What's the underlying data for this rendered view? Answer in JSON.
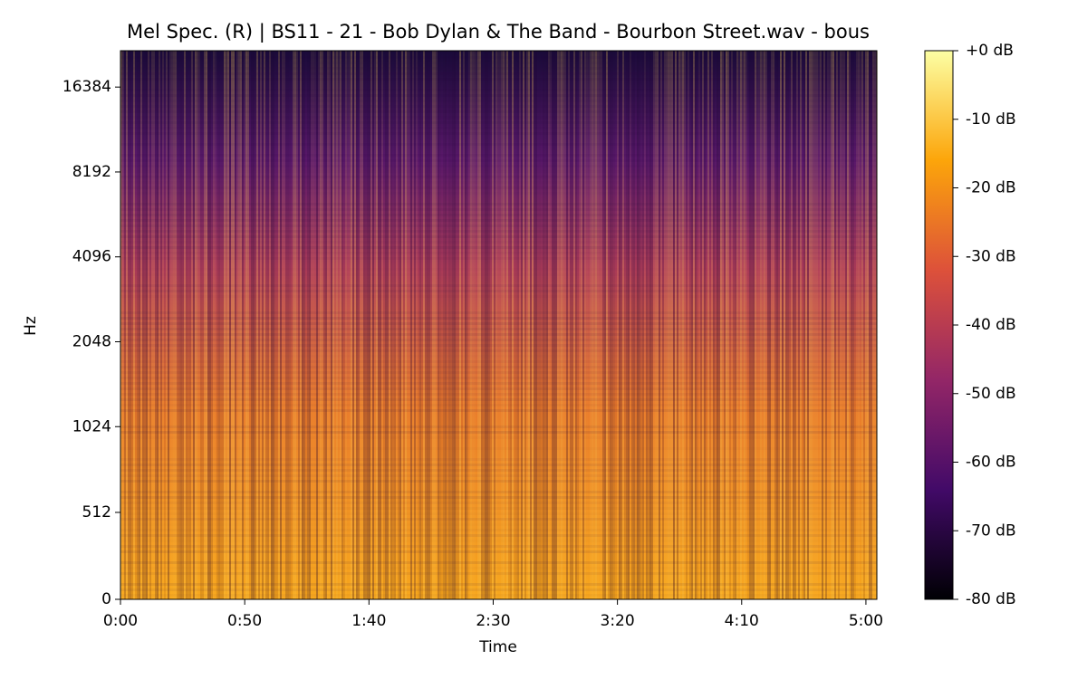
{
  "chart_data": {
    "type": "spectrogram",
    "title": "Mel Spec. (R) | BS11 - 21 - Bob Dylan & The Band - Bourbon Street.wav - bous",
    "xlabel": "Time",
    "ylabel": "Hz",
    "xlim": [
      0,
      304.4
    ],
    "xticks": [
      {
        "value": 0,
        "label": "0:00"
      },
      {
        "value": 50,
        "label": "0:50"
      },
      {
        "value": 100,
        "label": "1:40"
      },
      {
        "value": 150,
        "label": "2:30"
      },
      {
        "value": 200,
        "label": "3:20"
      },
      {
        "value": 250,
        "label": "4:10"
      },
      {
        "value": 300,
        "label": "5:00"
      }
    ],
    "ylim": [
      0,
      22050
    ],
    "yscale": "symlog",
    "linthresh": 1000,
    "yticks": [
      0,
      512,
      1024,
      2048,
      4096,
      8192,
      16384
    ],
    "colormap": [
      "#000004",
      "#420a68",
      "#932667",
      "#dd513a",
      "#fca50a",
      "#fcffa4"
    ],
    "clim": [
      -80,
      0
    ],
    "cticks": [
      {
        "value": 0,
        "label": "+0 dB"
      },
      {
        "value": -10,
        "label": "-10 dB"
      },
      {
        "value": -20,
        "label": "-20 dB"
      },
      {
        "value": -30,
        "label": "-30 dB"
      },
      {
        "value": -40,
        "label": "-40 dB"
      },
      {
        "value": -50,
        "label": "-50 dB"
      },
      {
        "value": -60,
        "label": "-60 dB"
      },
      {
        "value": -70,
        "label": "-70 dB"
      },
      {
        "value": -80,
        "label": "-80 dB"
      }
    ]
  }
}
